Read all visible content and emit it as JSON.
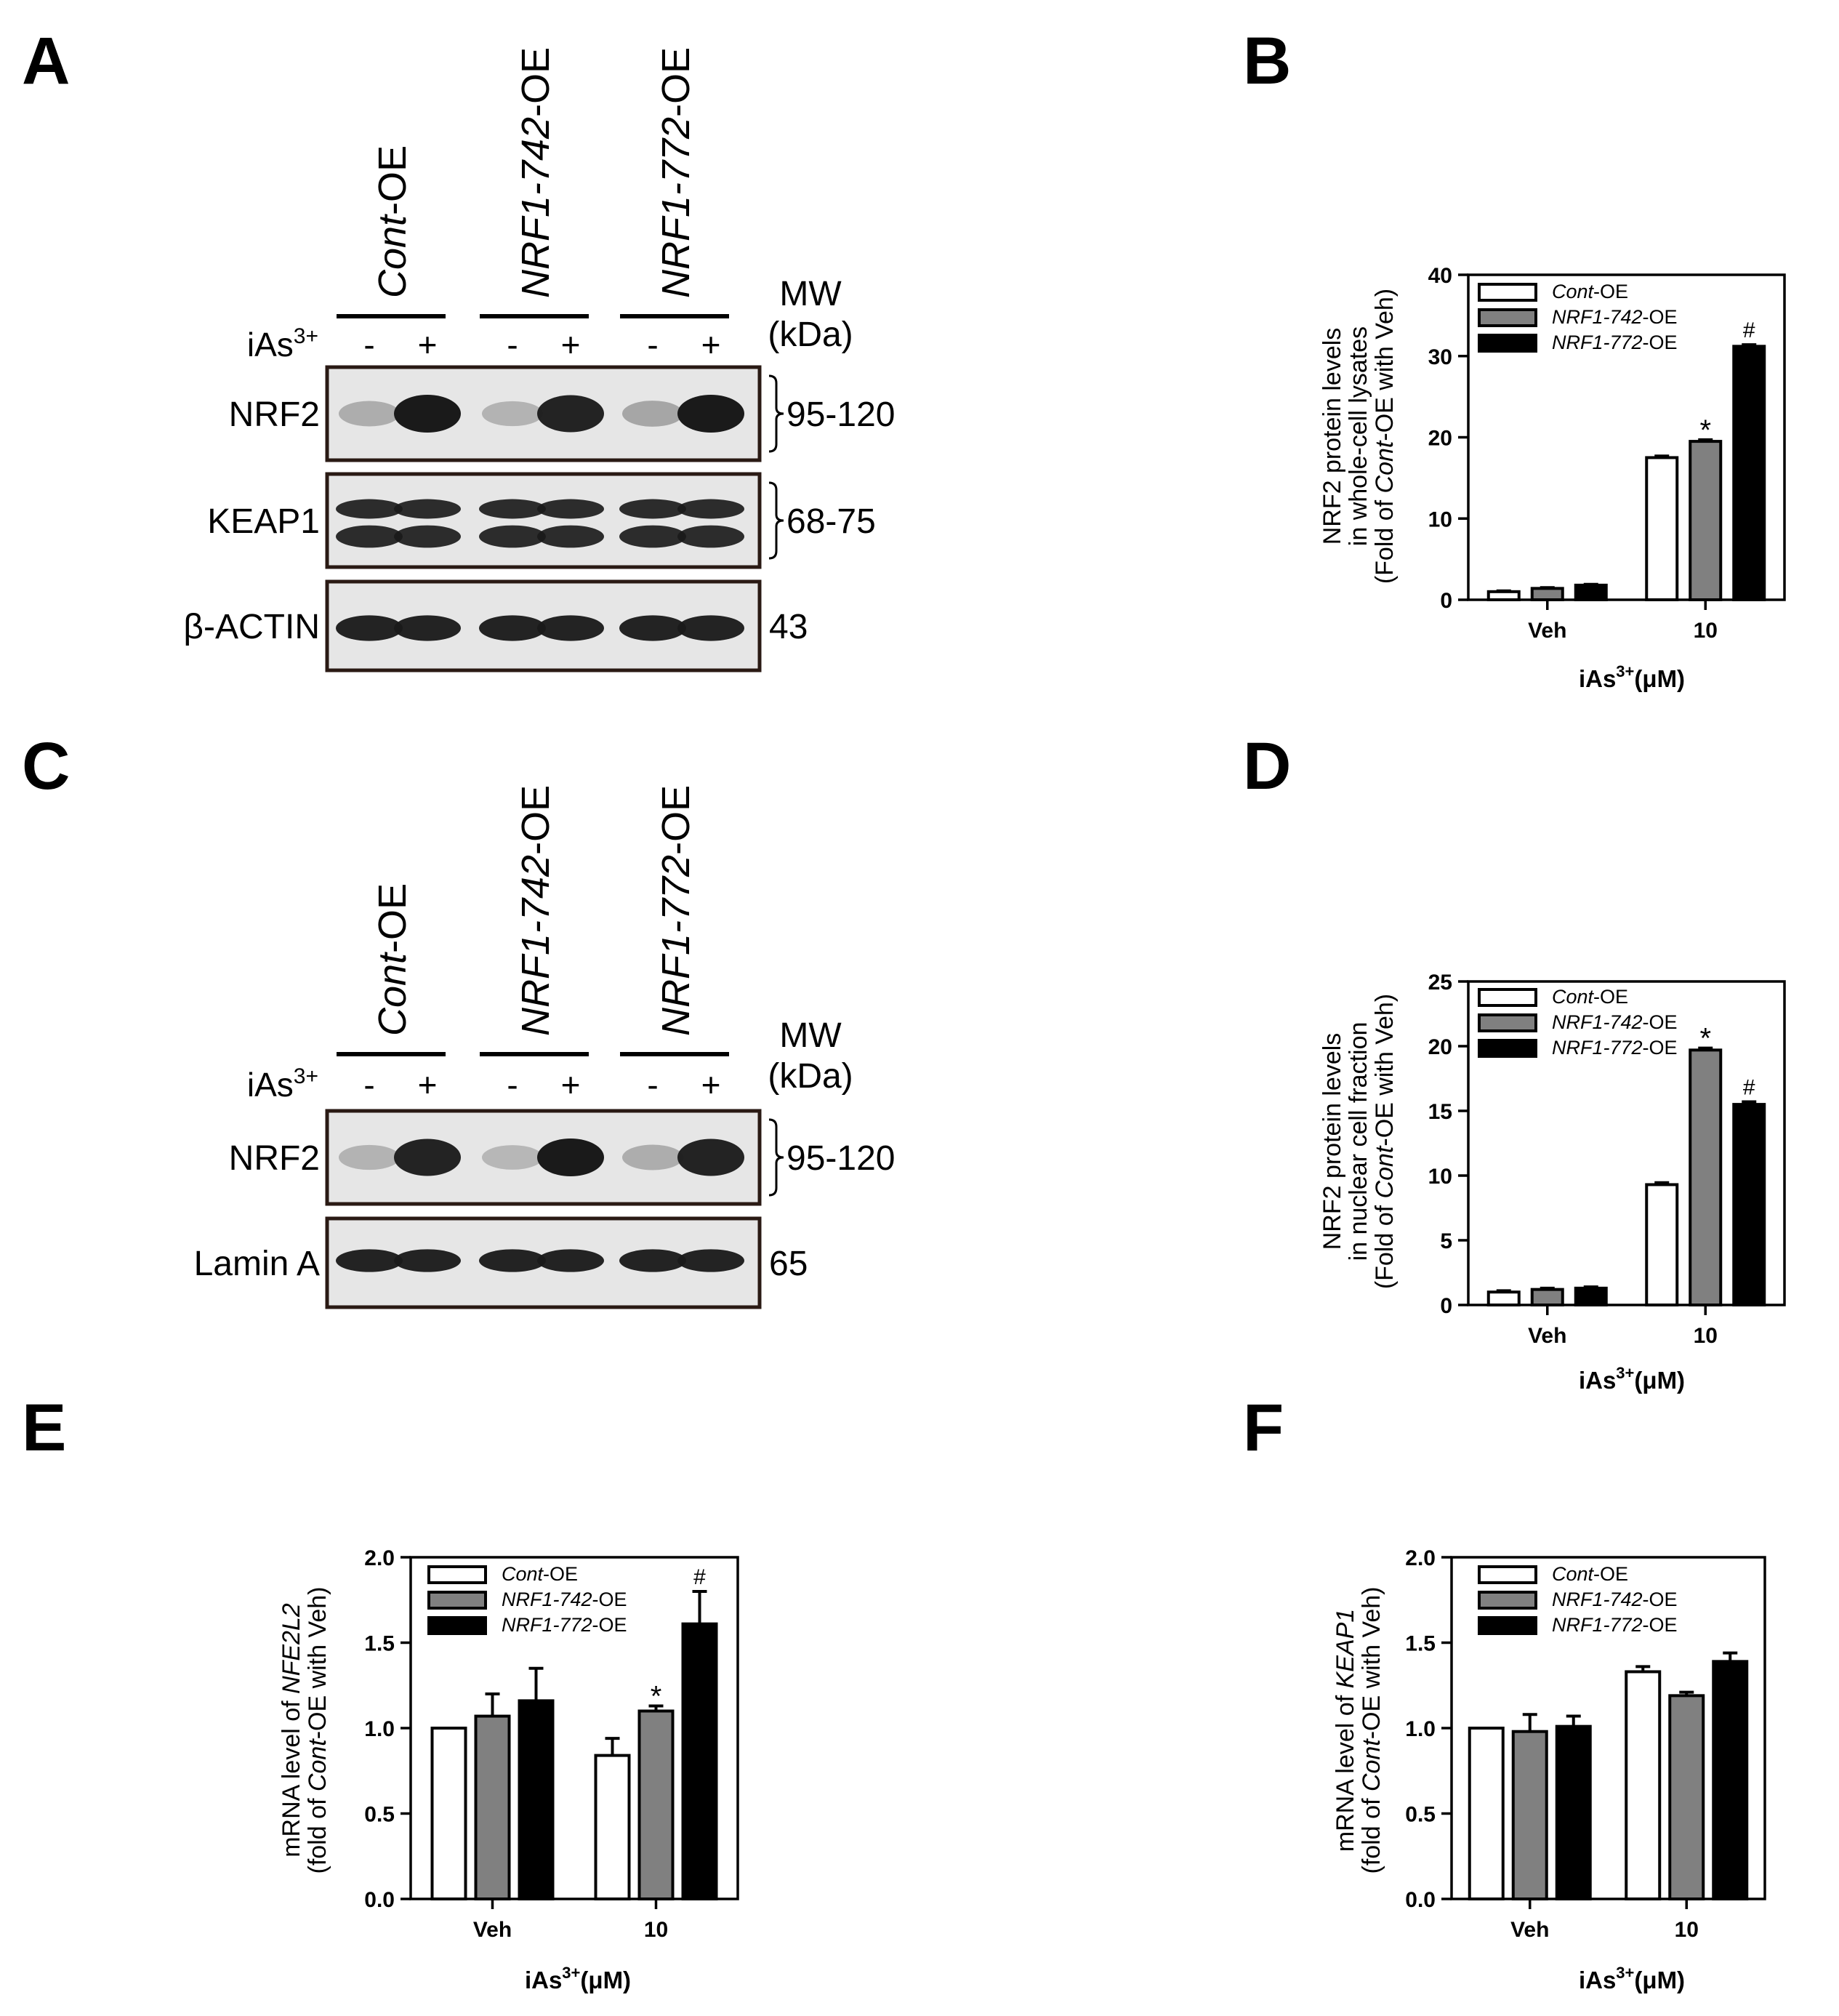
{
  "panels": {
    "a": {
      "letter": "A",
      "treatment_label": "iAs",
      "treatment_sup": "3+",
      "groups": [
        {
          "italic": "Cont",
          "rest": "-OE"
        },
        {
          "italic": "NRF1-742",
          "rest": "-OE"
        },
        {
          "italic": "NRF1-772",
          "rest": "-OE"
        }
      ],
      "signs": [
        "-",
        "+",
        "-",
        "+",
        "-",
        "+"
      ],
      "mw_header": "MW",
      "mw_unit": "(kDa)",
      "blots": [
        {
          "label": "NRF2",
          "mw": "95-120"
        },
        {
          "label": "KEAP1",
          "mw": "68-75"
        },
        {
          "label": "β-ACTIN",
          "mw": "43"
        }
      ]
    },
    "c": {
      "letter": "C",
      "treatment_label": "iAs",
      "treatment_sup": "3+",
      "groups": [
        {
          "italic": "Cont",
          "rest": "-OE"
        },
        {
          "italic": "NRF1-742",
          "rest": "-OE"
        },
        {
          "italic": "NRF1-772",
          "rest": "-OE"
        }
      ],
      "signs": [
        "-",
        "+",
        "-",
        "+",
        "-",
        "+"
      ],
      "mw_header": "MW",
      "mw_unit": "(kDa)",
      "blots": [
        {
          "label": "NRF2",
          "mw": "95-120"
        },
        {
          "label": "Lamin A",
          "mw": "65"
        }
      ]
    },
    "b": {
      "letter": "B"
    },
    "d": {
      "letter": "D"
    },
    "e": {
      "letter": "E"
    },
    "f": {
      "letter": "F"
    }
  },
  "style": {
    "colors": {
      "cont_oe": "#ffffff",
      "nrf1_742_oe": "#808080",
      "nrf1_772_oe": "#000000",
      "blot_background": "#e6e6e6",
      "band": "#1a1a1a"
    }
  },
  "chart_data": [
    {
      "panel": "B",
      "type": "bar",
      "categories": [
        "Veh",
        "10"
      ],
      "xlabel": {
        "text": "iAs",
        "sup": "3+",
        "unit": "(μM)"
      },
      "ylabel_lines": [
        [
          {
            "t": "NRF2 protein levels"
          }
        ],
        [
          {
            "t": "in whole-cell lysates"
          }
        ],
        [
          {
            "t": "(Fold of "
          },
          {
            "t": "Cont",
            "i": true
          },
          {
            "t": "-OE with Veh)"
          }
        ]
      ],
      "ylim": [
        0,
        40
      ],
      "yticks": [
        0,
        10,
        20,
        30,
        40
      ],
      "series": [
        {
          "name": "Cont-OE",
          "name_italic": "Cont",
          "name_rest": "-OE",
          "values": [
            1.0,
            17.5
          ],
          "errors": [
            0.1,
            0.2
          ],
          "marks": [
            "",
            ""
          ]
        },
        {
          "name": "NRF1-742-OE",
          "name_italic": "NRF1-742",
          "name_rest": "-OE",
          "values": [
            1.4,
            19.5
          ],
          "errors": [
            0.1,
            0.2
          ],
          "marks": [
            "",
            "*"
          ]
        },
        {
          "name": "NRF1-772-OE",
          "name_italic": "NRF1-772",
          "name_rest": "-OE",
          "values": [
            1.8,
            31.2
          ],
          "errors": [
            0.1,
            0.2
          ],
          "marks": [
            "",
            "#"
          ]
        }
      ]
    },
    {
      "panel": "D",
      "type": "bar",
      "categories": [
        "Veh",
        "10"
      ],
      "xlabel": {
        "text": "iAs",
        "sup": "3+",
        "unit": "(μM)"
      },
      "ylabel_lines": [
        [
          {
            "t": "NRF2 protein levels"
          }
        ],
        [
          {
            "t": "in nuclear cell fraction"
          }
        ],
        [
          {
            "t": "(Fold of "
          },
          {
            "t": "Cont",
            "i": true
          },
          {
            "t": "-OE with Veh)"
          }
        ]
      ],
      "ylim": [
        0,
        25
      ],
      "yticks": [
        0,
        5,
        10,
        15,
        20,
        25
      ],
      "series": [
        {
          "name": "Cont-OE",
          "name_italic": "Cont",
          "name_rest": "-OE",
          "values": [
            1.0,
            9.3
          ],
          "errors": [
            0.1,
            0.15
          ],
          "marks": [
            "",
            ""
          ]
        },
        {
          "name": "NRF1-742-OE",
          "name_italic": "NRF1-742",
          "name_rest": "-OE",
          "values": [
            1.2,
            19.7
          ],
          "errors": [
            0.1,
            0.15
          ],
          "marks": [
            "",
            "*"
          ]
        },
        {
          "name": "NRF1-772-OE",
          "name_italic": "NRF1-772",
          "name_rest": "-OE",
          "values": [
            1.3,
            15.5
          ],
          "errors": [
            0.1,
            0.2
          ],
          "marks": [
            "",
            "#"
          ]
        }
      ]
    },
    {
      "panel": "E",
      "type": "bar",
      "categories": [
        "Veh",
        "10"
      ],
      "xlabel": {
        "text": "iAs",
        "sup": "3+",
        "unit": "(μM)"
      },
      "ylabel_lines": [
        [
          {
            "t": "mRNA level of "
          },
          {
            "t": "NFE2L2",
            "i": true
          }
        ],
        [
          {
            "t": "(fold of "
          },
          {
            "t": "Cont",
            "i": true
          },
          {
            "t": "-OE with Veh)"
          }
        ]
      ],
      "ylim": [
        0,
        2.0
      ],
      "yticks": [
        0.0,
        0.5,
        1.0,
        1.5,
        2.0
      ],
      "series": [
        {
          "name": "Cont-OE",
          "name_italic": "Cont",
          "name_rest": "-OE",
          "values": [
            1.0,
            0.84
          ],
          "errors": [
            0,
            0.1
          ],
          "marks": [
            "",
            ""
          ]
        },
        {
          "name": "NRF1-742-OE",
          "name_italic": "NRF1-742",
          "name_rest": "-OE",
          "values": [
            1.07,
            1.1
          ],
          "errors": [
            0.13,
            0.03
          ],
          "marks": [
            "",
            "*"
          ]
        },
        {
          "name": "NRF1-772-OE",
          "name_italic": "NRF1-772",
          "name_rest": "-OE",
          "values": [
            1.16,
            1.61
          ],
          "errors": [
            0.19,
            0.19
          ],
          "marks": [
            "",
            "#"
          ]
        }
      ]
    },
    {
      "panel": "F",
      "type": "bar",
      "categories": [
        "Veh",
        "10"
      ],
      "xlabel": {
        "text": "iAs",
        "sup": "3+",
        "unit": "(μM)"
      },
      "ylabel_lines": [
        [
          {
            "t": "mRNA level of "
          },
          {
            "t": "KEAP1",
            "i": true
          }
        ],
        [
          {
            "t": "(fold of "
          },
          {
            "t": "Cont",
            "i": true
          },
          {
            "t": "-OE with Veh)"
          }
        ]
      ],
      "ylim": [
        0,
        2.0
      ],
      "yticks": [
        0.0,
        0.5,
        1.0,
        1.5,
        2.0
      ],
      "series": [
        {
          "name": "Cont-OE",
          "name_italic": "Cont",
          "name_rest": "-OE",
          "values": [
            1.0,
            1.33
          ],
          "errors": [
            0,
            0.03
          ],
          "marks": [
            "",
            ""
          ]
        },
        {
          "name": "NRF1-742-OE",
          "name_italic": "NRF1-742",
          "name_rest": "-OE",
          "values": [
            0.98,
            1.19
          ],
          "errors": [
            0.1,
            0.02
          ],
          "marks": [
            "",
            ""
          ]
        },
        {
          "name": "NRF1-772-OE",
          "name_italic": "NRF1-772",
          "name_rest": "-OE",
          "values": [
            1.01,
            1.39
          ],
          "errors": [
            0.06,
            0.05
          ],
          "marks": [
            "",
            ""
          ]
        }
      ]
    }
  ]
}
